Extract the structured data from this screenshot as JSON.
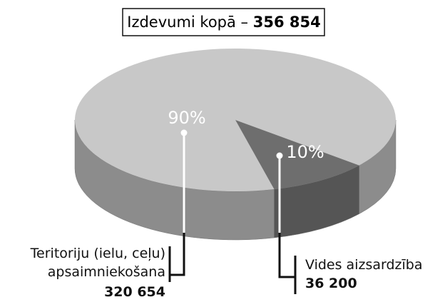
{
  "chart_data": {
    "type": "pie3d",
    "title": "Izdevumi kopā –",
    "total_label": "356 854",
    "categories": [
      "Teritoriju (ielu, ceļu)\napsaimniekošana",
      "Vides aizsardzība"
    ],
    "values": [
      320654,
      36200
    ],
    "value_labels": [
      "320 654",
      "36 200"
    ],
    "percent_labels": [
      "90%",
      "10%"
    ],
    "colors": [
      "#c8c8c8",
      "#6e6e6e"
    ],
    "side_colors": [
      "#8c8c8c",
      "#555555"
    ]
  }
}
